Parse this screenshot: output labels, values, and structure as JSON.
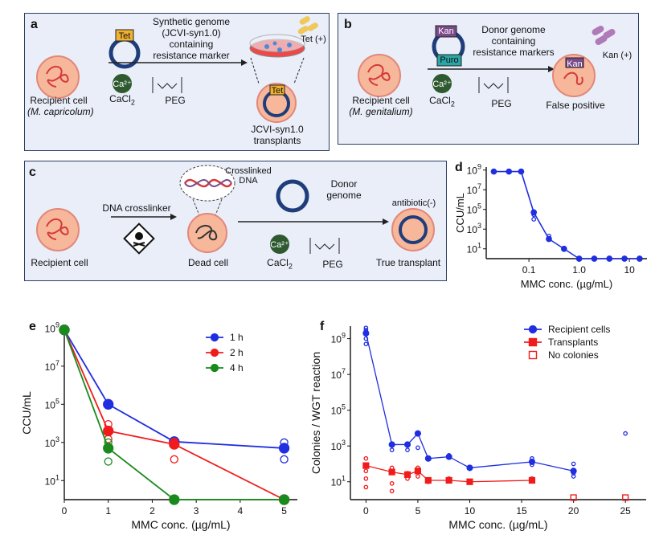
{
  "panels": {
    "a": {
      "letter": "a",
      "recipient_label_1": "Recipient cell",
      "recipient_label_2": "(M. capricolum)",
      "plasmid_marker": "Tet",
      "arrow_text": [
        "Synthetic genome",
        "(JCVI-syn1.0)",
        "containing",
        "resistance marker"
      ],
      "calcium": "Ca²⁺",
      "cacl2": "CaCl",
      "cacl2_sub": "2",
      "peg": "PEG",
      "plate_label": "Tet (+)",
      "transplant_marker": "Tet",
      "transplant_label_1": "JCVI-syn1.0",
      "transplant_label_2": "transplants"
    },
    "b": {
      "letter": "b",
      "recipient_label_1": "Recipient cell",
      "recipient_label_2": "(M. genitalium)",
      "marker_1": "Kan",
      "marker_2": "Puro",
      "arrow_text": [
        "Donor genome",
        "containing",
        "resistance markers"
      ],
      "calcium": "Ca²⁺",
      "cacl2": "CaCl",
      "cacl2_sub": "2",
      "peg": "PEG",
      "result_marker": "Kan",
      "plate_label": "Kan (+)",
      "result_label": "False positive"
    },
    "c": {
      "letter": "c",
      "recipient_label": "Recipient cell",
      "crosslinker_label": "DNA crosslinker",
      "crosslinked_label_1": "Crosslinked",
      "crosslinked_label_2": "DNA",
      "dead_label": "Dead cell",
      "donor_label_1": "Donor",
      "donor_label_2": "genome",
      "calcium": "Ca²⁺",
      "cacl2": "CaCl",
      "cacl2_sub": "2",
      "peg": "PEG",
      "antibiotic_label": "antibiotic(-)",
      "true_label": "True transplant"
    },
    "d": {
      "letter": "d"
    },
    "e": {
      "letter": "e"
    },
    "f": {
      "letter": "f"
    }
  },
  "colors": {
    "blue": "#1f2ee0",
    "red": "#f01c1c",
    "green": "#198a1c",
    "panel_bg": "#e9eef9",
    "cell_fill": "#f7b79a",
    "cell_stroke": "#e2877a",
    "genome": "#d43a3a",
    "ring": "#1f3d7a"
  },
  "chart_data": [
    {
      "panel": "d",
      "type": "line",
      "xscale": "log",
      "yscale": "log",
      "xlabel": "MMC conc. (µg/mL)",
      "ylabel": "CCU/mL",
      "xticks": [
        "0.1",
        "1.0",
        "10"
      ],
      "yticks": [
        "10^1",
        "10^3",
        "10^5",
        "10^7",
        "10^9"
      ],
      "ylim": [
        1,
        1000000000
      ],
      "series": [
        {
          "color": "#1f2ee0",
          "x": [
            0.02,
            0.04,
            0.07,
            0.125,
            0.25,
            0.5,
            1,
            2,
            4,
            8,
            16
          ],
          "y": [
            700000000,
            700000000,
            700000000,
            50000,
            100,
            10,
            1,
            1,
            1,
            1,
            1
          ],
          "replicates": [
            [
              0.125,
              30000
            ],
            [
              0.125,
              10000
            ],
            [
              0.25,
              200
            ],
            [
              0.25,
              100
            ],
            [
              0.5,
              10
            ]
          ]
        }
      ]
    },
    {
      "panel": "e",
      "type": "line",
      "yscale": "log",
      "xlabel": "MMC conc. (µg/mL)",
      "ylabel": "CCU/mL",
      "xticks": [
        "0",
        "1",
        "2",
        "3",
        "4",
        "5"
      ],
      "yticks": [
        "10^1",
        "10^3",
        "10^5",
        "10^7",
        "10^9"
      ],
      "xlim": [
        0,
        5.3
      ],
      "legend_position": "top-right",
      "series": [
        {
          "name": "1 h",
          "color": "#1f2ee0",
          "x": [
            0,
            1,
            2.5,
            5
          ],
          "y": [
            800000000,
            100000,
            1100,
            500
          ],
          "replicates": [
            [
              5,
              1000
            ],
            [
              5,
              130
            ]
          ]
        },
        {
          "name": "2 h",
          "color": "#f01c1c",
          "x": [
            0,
            1,
            2.5,
            5
          ],
          "y": [
            800000000,
            4000,
            800,
            1
          ],
          "replicates": [
            [
              1,
              9000
            ],
            [
              1,
              1500
            ],
            [
              2.5,
              130
            ],
            [
              2.5,
              1100
            ]
          ]
        },
        {
          "name": "4 h",
          "color": "#198a1c",
          "x": [
            0,
            1,
            2.5,
            5
          ],
          "y": [
            800000000,
            500,
            1,
            1
          ],
          "replicates": [
            [
              1,
              1000
            ],
            [
              1,
              100
            ]
          ]
        }
      ]
    },
    {
      "panel": "f",
      "type": "line",
      "yscale": "log",
      "xlabel": "MMC conc. (µg/mL)",
      "ylabel": "Colonies / WGT reaction",
      "xticks": [
        "0",
        "5",
        "10",
        "15",
        "20",
        "25"
      ],
      "yticks": [
        "10^1",
        "10^3",
        "10^5",
        "10^7",
        "10^9"
      ],
      "xlim": [
        -1.5,
        27
      ],
      "legend_position": "top-right",
      "series": [
        {
          "name": "Recipient cells",
          "color": "#1f2ee0",
          "marker": "circle",
          "x": [
            0,
            2.5,
            4,
            5,
            6,
            8,
            10,
            16,
            20
          ],
          "y": [
            2000000000,
            1200,
            1200,
            5000,
            200,
            250,
            60,
            130,
            40
          ],
          "replicates": [
            [
              0,
              4000000000
            ],
            [
              0,
              3000000000
            ],
            [
              0,
              1000000000
            ],
            [
              0,
              500000000
            ],
            [
              2.5,
              600
            ],
            [
              4,
              600
            ],
            [
              5,
              800
            ],
            [
              6,
              200
            ],
            [
              8,
              300
            ],
            [
              16,
              200
            ],
            [
              16,
              90
            ],
            [
              20,
              100
            ],
            [
              20,
              30
            ],
            [
              20,
              20
            ],
            [
              25,
              5000
            ]
          ]
        },
        {
          "name": "Transplants",
          "color": "#f01c1c",
          "marker": "square",
          "x": [
            0,
            2.5,
            4,
            5,
            6,
            8,
            10,
            16
          ],
          "y": [
            80,
            35,
            25,
            40,
            12,
            12,
            10,
            12
          ],
          "replicates": [
            [
              0,
              200
            ],
            [
              0,
              40
            ],
            [
              0,
              15
            ],
            [
              0,
              5
            ],
            [
              2.5,
              60
            ],
            [
              2.5,
              8
            ],
            [
              2.5,
              3
            ],
            [
              4,
              30
            ],
            [
              4,
              15
            ],
            [
              5,
              60
            ],
            [
              5,
              20
            ],
            [
              6,
              10
            ],
            [
              8,
              15
            ],
            [
              16,
              15
            ]
          ]
        },
        {
          "name": "No colonies",
          "color": "#f01c1c",
          "marker": "open-square",
          "x": [
            20,
            25
          ],
          "y": [
            1.3,
            1.3
          ]
        }
      ]
    }
  ]
}
